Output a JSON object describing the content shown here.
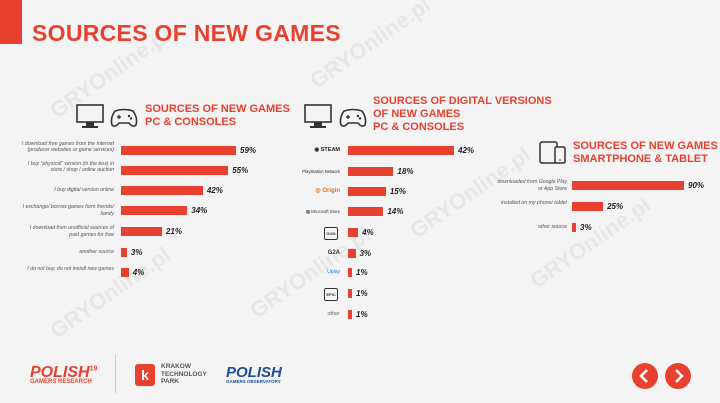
{
  "page": {
    "title": "SOURCES OF NEW GAMES",
    "watermark": "GRYOnline.pl"
  },
  "chart_data": [
    {
      "type": "bar",
      "title": "SOURCES OF NEW GAMES PC & CONSOLES",
      "title_lines": [
        "SOURCES OF NEW GAMES",
        "PC & CONSOLES"
      ],
      "categories": [
        "I download free games from the Internet (producer websites or game services)",
        "I buy \"physical\" version (in the box) in store / shop / online auction",
        "I buy digital version online",
        "I exchange/ borrow games form friends/ family",
        "I download from  unofficial sources of paid games for free",
        "another source",
        "I do not buy, do not install new games"
      ],
      "values": [
        59,
        55,
        42,
        34,
        21,
        3,
        4
      ],
      "value_labels": [
        "59%",
        "55%",
        "42%",
        "34%",
        "21%",
        "3%",
        "4%"
      ],
      "orientation": "horizontal",
      "color": "#e84130"
    },
    {
      "type": "bar",
      "title": "SOURCES OF DIGITAL VERSIONS OF NEW GAMES PC & CONSOLES",
      "title_lines": [
        "SOURCES OF DIGITAL VERSIONS",
        "OF NEW GAMES",
        "PC & CONSOLES"
      ],
      "categories": [
        "STEAM",
        "PlayStation Network",
        "Origin",
        "Microsoft Store",
        "GOG",
        "G2A",
        "Uplay",
        "EPIC",
        "other"
      ],
      "values": [
        42,
        18,
        15,
        14,
        4,
        3,
        1,
        1,
        1
      ],
      "value_labels": [
        "42%",
        "18%",
        "15%",
        "14%",
        "4%",
        "3%",
        "1%",
        "1%",
        "1%"
      ],
      "orientation": "horizontal",
      "color": "#e84130"
    },
    {
      "type": "bar",
      "title": "SOURCES OF NEW GAMES SMARTPHONE & TABLET",
      "title_lines": [
        "SOURCES OF NEW GAMES",
        "SMARTPHONE & TABLET"
      ],
      "categories": [
        "downloaded from Google Play or App Store",
        "installed on my phone/ tablet",
        "other source"
      ],
      "values": [
        90,
        25,
        3
      ],
      "value_labels": [
        "90%",
        "25%",
        "3%"
      ],
      "orientation": "horizontal",
      "color": "#e84130"
    }
  ],
  "footer": {
    "pgr_logo": "POLISH",
    "pgr_sup": "19",
    "pgr_sub": "GAMERS RESEARCH",
    "ktp_line1": "KRAKOW",
    "ktp_line2": "TECHNOLOGY",
    "ktp_line3": "PARK",
    "pgo_logo": "POLISH",
    "pgo_sub": "GAMERS OBSERVATORY"
  },
  "nav": {
    "prev_icon": "chevron-left-icon",
    "next_icon": "chevron-right-icon"
  },
  "icons": {
    "pc": "computer-icon",
    "gamepad": "gamepad-icon",
    "devices": "phone-tablet-icon"
  }
}
